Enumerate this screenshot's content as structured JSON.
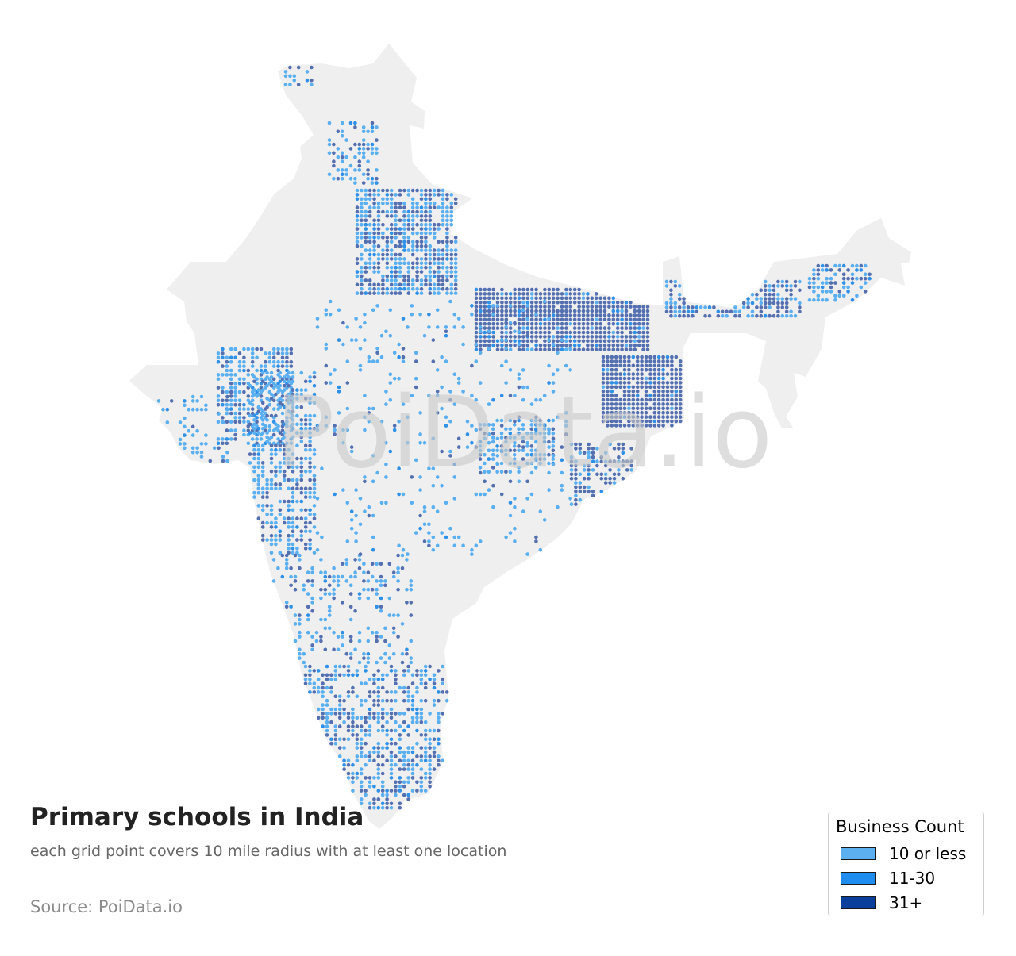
{
  "map": {
    "watermark": "PoiData.io",
    "land_color": "#efefef",
    "dot_colors": {
      "low": "#5aaff0",
      "mid": "#2e90e6",
      "high": "#5470b0"
    }
  },
  "title": "Primary schools in India",
  "subtitle": "each grid point covers 10 mile radius with at least one location",
  "source": "Source: PoiData.io",
  "legend": {
    "title": "Business Count",
    "items": [
      {
        "label": "10 or less",
        "color": "#5cb0ef"
      },
      {
        "label": "11-30",
        "color": "#1f8ded"
      },
      {
        "label": "31+",
        "color": "#0b3f9c"
      }
    ]
  }
}
